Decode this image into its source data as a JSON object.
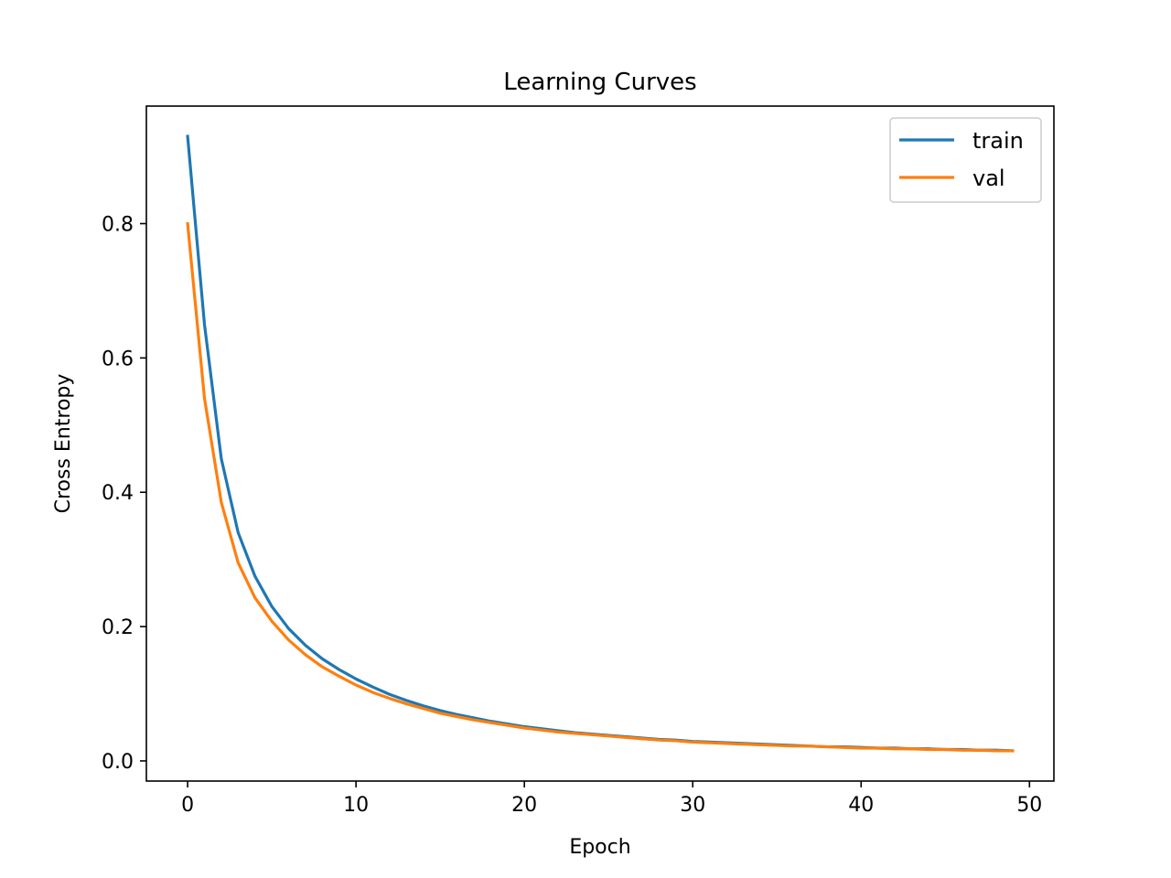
{
  "chart_data": {
    "type": "line",
    "title": "Learning Curves",
    "xlabel": "Epoch",
    "ylabel": "Cross Entropy",
    "xlim": [
      -2.45,
      51.45
    ],
    "ylim": [
      -0.03,
      0.975
    ],
    "xticks": [
      0,
      10,
      20,
      30,
      40,
      50
    ],
    "xtick_labels": [
      "0",
      "10",
      "20",
      "30",
      "40",
      "50"
    ],
    "yticks": [
      0.0,
      0.2,
      0.4,
      0.6,
      0.8
    ],
    "ytick_labels": [
      "0.0",
      "0.2",
      "0.4",
      "0.6",
      "0.8"
    ],
    "grid": false,
    "legend_position": "top-right",
    "x": [
      0,
      1,
      2,
      3,
      4,
      5,
      6,
      7,
      8,
      9,
      10,
      11,
      12,
      13,
      14,
      15,
      16,
      17,
      18,
      19,
      20,
      21,
      22,
      23,
      24,
      25,
      26,
      27,
      28,
      29,
      30,
      31,
      32,
      33,
      34,
      35,
      36,
      37,
      38,
      39,
      40,
      41,
      42,
      43,
      44,
      45,
      46,
      47,
      48,
      49
    ],
    "series": [
      {
        "name": "train",
        "color": "#1f77b4",
        "values": [
          0.93,
          0.65,
          0.45,
          0.34,
          0.275,
          0.23,
          0.197,
          0.172,
          0.152,
          0.136,
          0.122,
          0.11,
          0.099,
          0.09,
          0.082,
          0.075,
          0.069,
          0.064,
          0.059,
          0.055,
          0.051,
          0.048,
          0.045,
          0.042,
          0.04,
          0.038,
          0.036,
          0.034,
          0.032,
          0.031,
          0.029,
          0.028,
          0.027,
          0.026,
          0.025,
          0.024,
          0.023,
          0.022,
          0.021,
          0.021,
          0.02,
          0.019,
          0.019,
          0.018,
          0.018,
          0.017,
          0.017,
          0.016,
          0.016,
          0.015
        ]
      },
      {
        "name": "val",
        "color": "#ff7f0e",
        "values": [
          0.8,
          0.54,
          0.385,
          0.295,
          0.243,
          0.208,
          0.18,
          0.158,
          0.14,
          0.126,
          0.113,
          0.102,
          0.093,
          0.085,
          0.078,
          0.071,
          0.066,
          0.061,
          0.057,
          0.053,
          0.049,
          0.046,
          0.043,
          0.041,
          0.039,
          0.037,
          0.035,
          0.033,
          0.031,
          0.03,
          0.028,
          0.027,
          0.026,
          0.025,
          0.024,
          0.023,
          0.022,
          0.022,
          0.021,
          0.02,
          0.019,
          0.019,
          0.018,
          0.018,
          0.017,
          0.017,
          0.016,
          0.016,
          0.015,
          0.015
        ]
      }
    ]
  }
}
